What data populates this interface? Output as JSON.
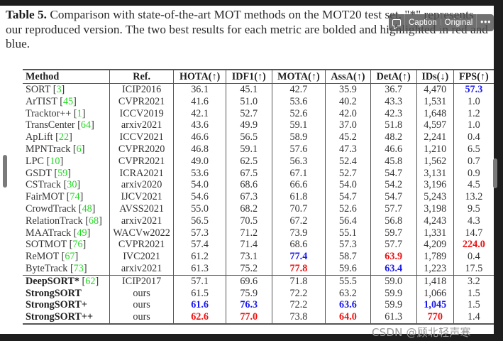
{
  "caption": {
    "label": "Table 5.",
    "text": " Comparison with state-of-the-art MOT methods on the MOT20 test set. \"*\" represents our reproduced version. The two best results for each metric are bolded and highlighted in red and blue."
  },
  "overlay_toolbar": {
    "caption_icon": "speech-bubble-icon",
    "caption_label": "Caption",
    "original_label": "Original",
    "more_label": "•••"
  },
  "colors": {
    "best": "#f01010",
    "second": "#1a1aee",
    "citation": "#22d822"
  },
  "table": {
    "headers": [
      "Method",
      "Ref.",
      "HOTA(↑)",
      "IDF1(↑)",
      "MOTA(↑)",
      "AssA(↑)",
      "DetA(↑)",
      "IDs(↓)",
      "FPS(↑)"
    ],
    "rows": [
      {
        "method": "SORT",
        "cite": "3",
        "ref": "ICIP2016",
        "v": [
          "36.1",
          "45.1",
          "42.7",
          "35.9",
          "36.7",
          "4,470",
          "57.3"
        ],
        "hl": [
          "",
          "",
          "",
          "",
          "",
          "",
          "blue"
        ]
      },
      {
        "method": "ArTIST",
        "cite": "45",
        "ref": "CVPR2021",
        "v": [
          "41.6",
          "51.0",
          "53.6",
          "40.2",
          "43.3",
          "1,531",
          "1.0"
        ],
        "hl": [
          "",
          "",
          "",
          "",
          "",
          "",
          ""
        ]
      },
      {
        "method": "Tracktor++",
        "cite": "1",
        "ref": "ICCV2019",
        "v": [
          "42.1",
          "52.7",
          "52.6",
          "42.0",
          "42.3",
          "1,648",
          "1.2"
        ],
        "hl": [
          "",
          "",
          "",
          "",
          "",
          "",
          ""
        ]
      },
      {
        "method": "TransCenter",
        "cite": "64",
        "ref": "arxiv2021",
        "v": [
          "43.6",
          "49.9",
          "59.1",
          "37.0",
          "51.8",
          "4,597",
          "1.0"
        ],
        "hl": [
          "",
          "",
          "",
          "",
          "",
          "",
          ""
        ]
      },
      {
        "method": "ApLift",
        "cite": "22",
        "ref": "ICCV2021",
        "v": [
          "46.6",
          "56.5",
          "58.9",
          "45.2",
          "48.2",
          "2,241",
          "0.4"
        ],
        "hl": [
          "",
          "",
          "",
          "",
          "",
          "",
          ""
        ]
      },
      {
        "method": "MPNTrack",
        "cite": "6",
        "ref": "CVPR2020",
        "v": [
          "46.8",
          "59.1",
          "57.6",
          "47.3",
          "46.6",
          "1,210",
          "6.5"
        ],
        "hl": [
          "",
          "",
          "",
          "",
          "",
          "",
          ""
        ]
      },
      {
        "method": "LPC",
        "cite": "10",
        "ref": "CVPR2021",
        "v": [
          "49.0",
          "62.5",
          "56.3",
          "52.4",
          "45.8",
          "1,562",
          "0.7"
        ],
        "hl": [
          "",
          "",
          "",
          "",
          "",
          "",
          ""
        ]
      },
      {
        "method": "GSDT",
        "cite": "59",
        "ref": "ICRA2021",
        "v": [
          "53.6",
          "67.5",
          "67.1",
          "52.7",
          "54.7",
          "3,131",
          "0.9"
        ],
        "hl": [
          "",
          "",
          "",
          "",
          "",
          "",
          ""
        ]
      },
      {
        "method": "CSTrack",
        "cite": "30",
        "ref": "arxiv2020",
        "v": [
          "54.0",
          "68.6",
          "66.6",
          "54.0",
          "54.2",
          "3,196",
          "4.5"
        ],
        "hl": [
          "",
          "",
          "",
          "",
          "",
          "",
          ""
        ]
      },
      {
        "method": "FairMOT",
        "cite": "74",
        "ref": "IJCV2021",
        "v": [
          "54.6",
          "67.3",
          "61.8",
          "54.7",
          "54.7",
          "5,243",
          "13.2"
        ],
        "hl": [
          "",
          "",
          "",
          "",
          "",
          "",
          ""
        ]
      },
      {
        "method": "CrowdTrack",
        "cite": "48",
        "ref": "AVSS2021",
        "v": [
          "55.0",
          "68.2",
          "70.7",
          "52.6",
          "57.7",
          "3,198",
          "9.5"
        ],
        "hl": [
          "",
          "",
          "",
          "",
          "",
          "",
          ""
        ]
      },
      {
        "method": "RelationTrack",
        "cite": "68",
        "ref": "arxiv2021",
        "v": [
          "56.5",
          "70.5",
          "67.2",
          "56.4",
          "56.8",
          "4,243",
          "4.3"
        ],
        "hl": [
          "",
          "",
          "",
          "",
          "",
          "",
          ""
        ]
      },
      {
        "method": "MAATrack",
        "cite": "49",
        "ref": "WACVw2022",
        "v": [
          "57.3",
          "71.2",
          "73.9",
          "55.1",
          "59.7",
          "1,331",
          "14.7"
        ],
        "hl": [
          "",
          "",
          "",
          "",
          "",
          "",
          ""
        ]
      },
      {
        "method": "SOTMOT",
        "cite": "76",
        "ref": "CVPR2021",
        "v": [
          "57.4",
          "71.4",
          "68.6",
          "57.3",
          "57.7",
          "4,209",
          "224.0"
        ],
        "hl": [
          "",
          "",
          "",
          "",
          "",
          "",
          "red"
        ]
      },
      {
        "method": "ReMOT",
        "cite": "67",
        "ref": "IVC2021",
        "v": [
          "61.2",
          "73.1",
          "77.4",
          "58.7",
          "63.9",
          "1,789",
          "0.4"
        ],
        "hl": [
          "",
          "",
          "blue",
          "",
          "red",
          "",
          ""
        ]
      },
      {
        "method": "ByteTrack",
        "cite": "73",
        "ref": "arxiv2021",
        "v": [
          "61.3",
          "75.2",
          "77.8",
          "59.6",
          "63.4",
          "1,223",
          "17.5"
        ],
        "hl": [
          "",
          "",
          "red",
          "",
          "blue",
          "",
          ""
        ]
      }
    ],
    "ours_rows": [
      {
        "method": "DeepSORT*",
        "cite": "62",
        "ref": "ICIP2017",
        "v": [
          "57.1",
          "69.6",
          "71.8",
          "55.5",
          "59.0",
          "1,418",
          "3.2"
        ],
        "hl": [
          "",
          "",
          "",
          "",
          "",
          "",
          ""
        ]
      },
      {
        "method": "StrongSORT",
        "cite": "",
        "ref": "ours",
        "v": [
          "61.5",
          "75.9",
          "72.2",
          "63.2",
          "59.9",
          "1,066",
          "1.5"
        ],
        "hl": [
          "",
          "",
          "",
          "",
          "",
          "",
          ""
        ]
      },
      {
        "method": "StrongSORT+",
        "cite": "",
        "ref": "ours",
        "v": [
          "61.6",
          "76.3",
          "72.2",
          "63.6",
          "59.9",
          "1,045",
          "1.5"
        ],
        "hl": [
          "blue",
          "blue",
          "",
          "blue",
          "",
          "blue",
          ""
        ]
      },
      {
        "method": "StrongSORT++",
        "cite": "",
        "ref": "ours",
        "v": [
          "62.6",
          "77.0",
          "73.8",
          "64.0",
          "61.3",
          "770",
          "1.4"
        ],
        "hl": [
          "red",
          "red",
          "",
          "red",
          "",
          "red",
          ""
        ]
      }
    ]
  },
  "watermark": "CSDN @顾北轻声寒"
}
